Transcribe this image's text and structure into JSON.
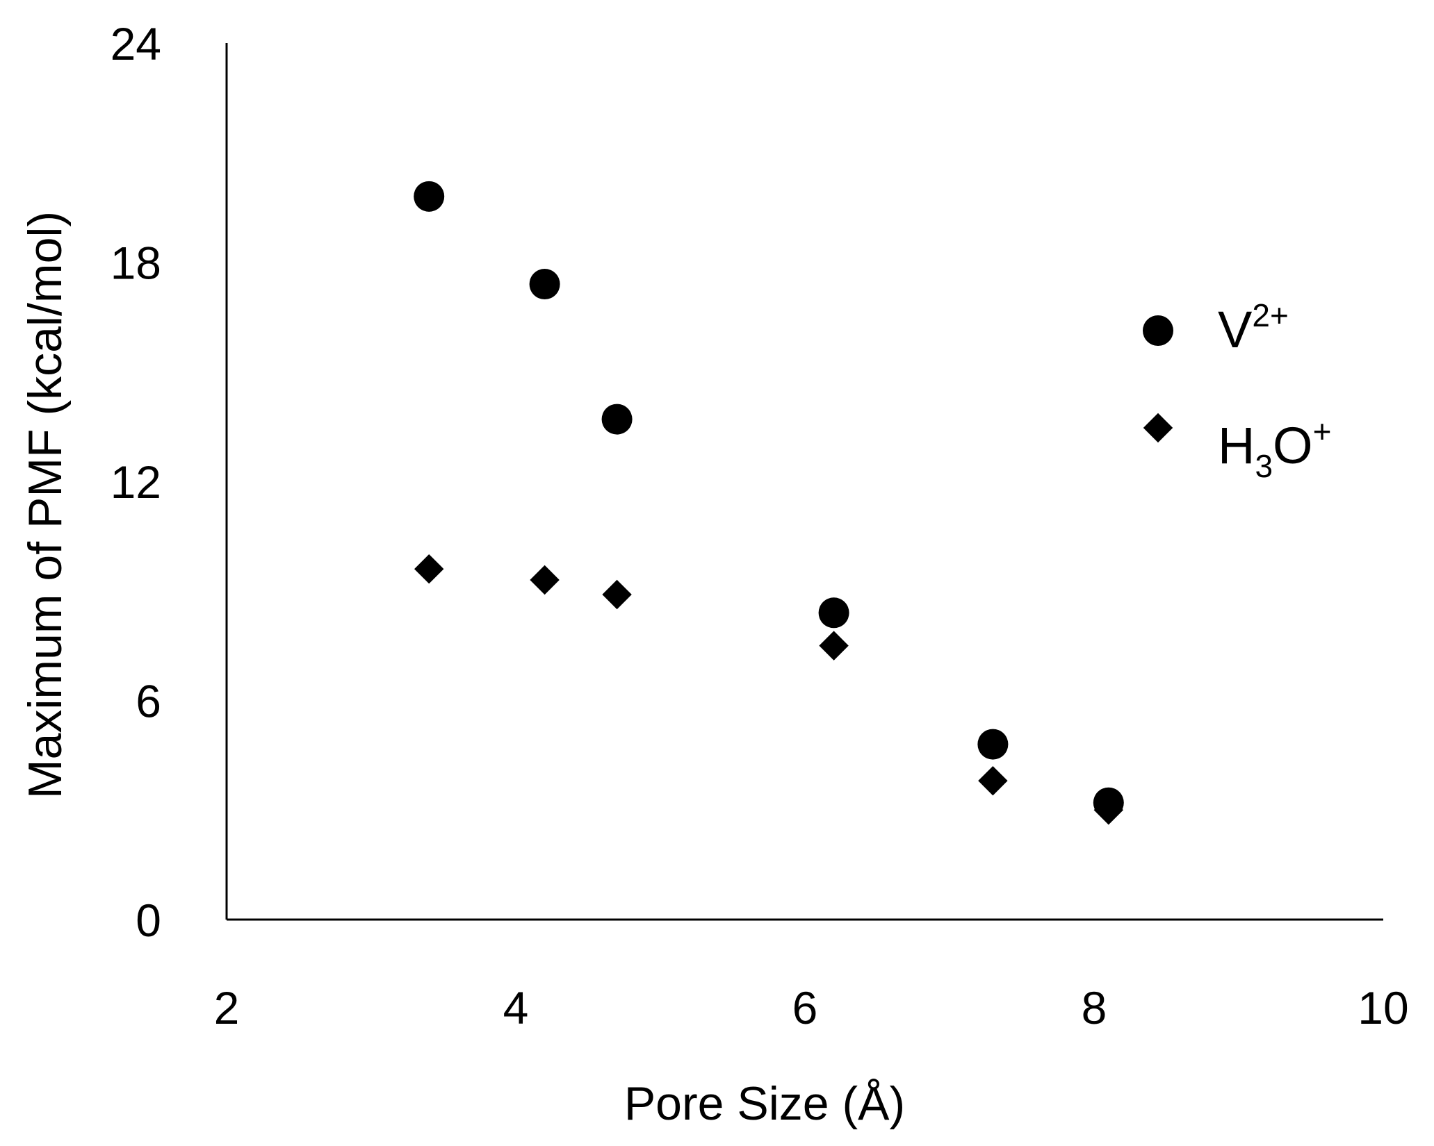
{
  "chart_data": {
    "type": "scatter",
    "title": "",
    "xlabel": "Pore Size (Å)",
    "ylabel": "Maximum of PMF (kcal/mol)",
    "xlim": [
      2,
      10
    ],
    "ylim": [
      0,
      24
    ],
    "xticks": [
      "2",
      "4",
      "6",
      "8",
      "10"
    ],
    "yticks": [
      "0",
      "6",
      "12",
      "18",
      "24"
    ],
    "grid": false,
    "legend_position": "right",
    "series": [
      {
        "name": "V2+",
        "legend_base": "V",
        "legend_sup": "2+",
        "marker": "circle",
        "color": "#000000",
        "x": [
          3.4,
          4.2,
          4.7,
          6.2,
          7.3,
          8.1
        ],
        "y": [
          19.8,
          17.4,
          13.7,
          8.4,
          4.8,
          3.2
        ]
      },
      {
        "name": "H3O+",
        "legend_base": "H",
        "legend_sub": "3",
        "legend_rest": "O",
        "legend_sup": "+",
        "marker": "diamond",
        "color": "#000000",
        "x": [
          3.4,
          4.2,
          4.7,
          6.2,
          7.3,
          8.1
        ],
        "y": [
          9.6,
          9.3,
          8.9,
          7.5,
          3.8,
          3.0
        ]
      }
    ]
  }
}
